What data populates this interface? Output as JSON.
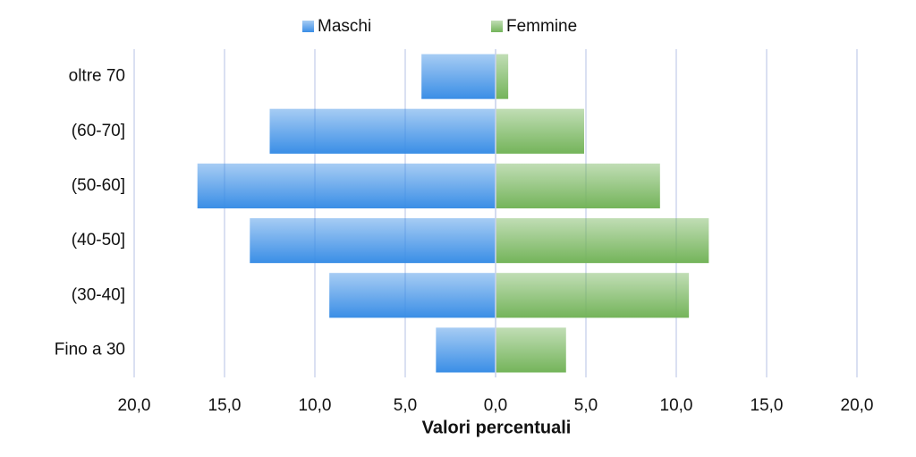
{
  "chart_data": {
    "type": "bar",
    "orientation": "horizontal",
    "x_label": "Valori percentuali",
    "categories": [
      "oltre 70",
      "(60-70]",
      "(50-60]",
      "(40-50]",
      "(30-40]",
      "Fino a 30"
    ],
    "series": [
      {
        "name": "Maschi",
        "color": "#3a8ee6",
        "values": [
          -4.1,
          -12.5,
          -16.5,
          -13.6,
          -9.2,
          -3.3
        ]
      },
      {
        "name": "Femmine",
        "color": "#74b45a",
        "values": [
          0.7,
          4.9,
          9.1,
          11.8,
          10.7,
          3.9
        ]
      }
    ],
    "xlim": [
      -20,
      20
    ],
    "xticks": [
      {
        "value": -20,
        "label": "20,0"
      },
      {
        "value": -15,
        "label": "15,0"
      },
      {
        "value": -10,
        "label": "10,0"
      },
      {
        "value": -5,
        "label": "5,0"
      },
      {
        "value": 0,
        "label": "0,0"
      },
      {
        "value": 5,
        "label": "5,0"
      },
      {
        "value": 10,
        "label": "10,0"
      },
      {
        "value": 15,
        "label": "15,0"
      },
      {
        "value": 20,
        "label": "20,0"
      }
    ],
    "grid": true,
    "legend": "top"
  }
}
